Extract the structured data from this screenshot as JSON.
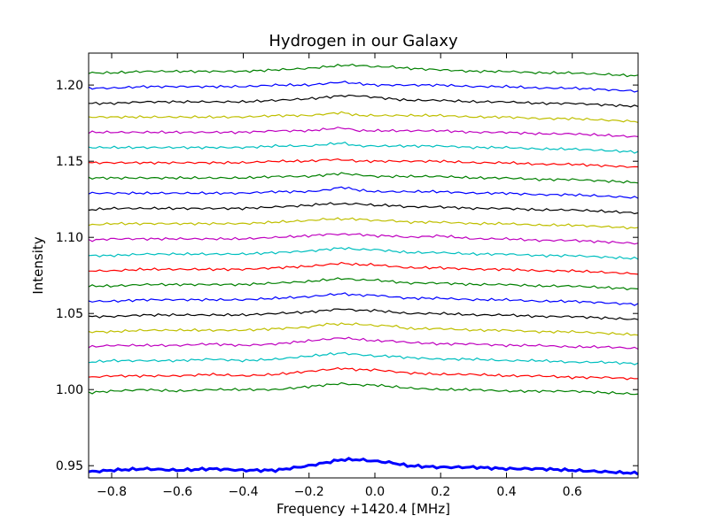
{
  "chart_data": {
    "type": "line",
    "title": "Hydrogen in our Galaxy",
    "xlabel": "Frequency +1420.4 [MHz]",
    "ylabel": "Intensity",
    "xlim": [
      -0.87,
      0.8
    ],
    "ylim": [
      0.942,
      1.221
    ],
    "x_ticks": [
      {
        "value": -0.8,
        "label": "−0.8"
      },
      {
        "value": -0.6,
        "label": "−0.6"
      },
      {
        "value": -0.4,
        "label": "−0.4"
      },
      {
        "value": -0.2,
        "label": "−0.2"
      },
      {
        "value": 0.0,
        "label": "0.0"
      },
      {
        "value": 0.2,
        "label": "0.2"
      },
      {
        "value": 0.4,
        "label": "0.4"
      },
      {
        "value": 0.6,
        "label": "0.6"
      }
    ],
    "y_ticks": [
      {
        "value": 0.95,
        "label": "0.95"
      },
      {
        "value": 1.0,
        "label": "1.00"
      },
      {
        "value": 1.05,
        "label": "1.05"
      },
      {
        "value": 1.1,
        "label": "1.10"
      },
      {
        "value": 1.15,
        "label": "1.15"
      },
      {
        "value": 1.2,
        "label": "1.20"
      }
    ],
    "grid": false,
    "legend": "none",
    "x_sample_points": [
      -0.87,
      -0.8,
      -0.7,
      -0.6,
      -0.5,
      -0.4,
      -0.3,
      -0.2,
      -0.15,
      -0.1,
      -0.05,
      0.0,
      0.05,
      0.1,
      0.2,
      0.3,
      0.4,
      0.5,
      0.6,
      0.7,
      0.8
    ],
    "series": [
      {
        "color": "#0000ff",
        "stroke": 3,
        "y": [
          0.946,
          0.947,
          0.948,
          0.947,
          0.948,
          0.947,
          0.947,
          0.95,
          0.952,
          0.954,
          0.954,
          0.953,
          0.952,
          0.95,
          0.949,
          0.949,
          0.948,
          0.948,
          0.947,
          0.946,
          0.945
        ]
      },
      {
        "color": "#008000",
        "stroke": 1.2,
        "y": [
          0.998,
          0.999,
          1.0,
          0.999,
          1.0,
          1.0,
          1.0,
          1.002,
          1.003,
          1.004,
          1.003,
          1.003,
          1.002,
          1.001,
          1.0,
          1.0,
          0.999,
          0.999,
          0.999,
          0.998,
          0.997
        ]
      },
      {
        "color": "#ff0000",
        "stroke": 1.2,
        "y": [
          1.008,
          1.009,
          1.009,
          1.009,
          1.01,
          1.009,
          1.01,
          1.012,
          1.013,
          1.014,
          1.013,
          1.013,
          1.012,
          1.011,
          1.01,
          1.01,
          1.009,
          1.009,
          1.008,
          1.008,
          1.007
        ]
      },
      {
        "color": "#00bfbf",
        "stroke": 1.2,
        "y": [
          1.018,
          1.019,
          1.019,
          1.019,
          1.02,
          1.019,
          1.02,
          1.022,
          1.023,
          1.024,
          1.023,
          1.022,
          1.022,
          1.021,
          1.02,
          1.02,
          1.019,
          1.019,
          1.018,
          1.018,
          1.017
        ]
      },
      {
        "color": "#bf00bf",
        "stroke": 1.2,
        "y": [
          1.028,
          1.029,
          1.029,
          1.029,
          1.03,
          1.029,
          1.03,
          1.032,
          1.033,
          1.034,
          1.033,
          1.032,
          1.032,
          1.031,
          1.03,
          1.03,
          1.029,
          1.029,
          1.028,
          1.028,
          1.027
        ]
      },
      {
        "color": "#bfbf00",
        "stroke": 1.2,
        "y": [
          1.038,
          1.038,
          1.039,
          1.039,
          1.039,
          1.039,
          1.04,
          1.041,
          1.043,
          1.043,
          1.043,
          1.042,
          1.042,
          1.04,
          1.04,
          1.039,
          1.039,
          1.038,
          1.038,
          1.037,
          1.036
        ]
      },
      {
        "color": "#000000",
        "stroke": 1.2,
        "y": [
          1.048,
          1.048,
          1.049,
          1.049,
          1.049,
          1.049,
          1.05,
          1.051,
          1.052,
          1.053,
          1.052,
          1.052,
          1.051,
          1.05,
          1.05,
          1.049,
          1.049,
          1.048,
          1.048,
          1.047,
          1.046
        ]
      },
      {
        "color": "#0000ff",
        "stroke": 1.2,
        "y": [
          1.058,
          1.058,
          1.059,
          1.059,
          1.059,
          1.059,
          1.06,
          1.061,
          1.062,
          1.063,
          1.062,
          1.062,
          1.061,
          1.06,
          1.06,
          1.059,
          1.059,
          1.058,
          1.058,
          1.057,
          1.056
        ]
      },
      {
        "color": "#008000",
        "stroke": 1.2,
        "y": [
          1.068,
          1.068,
          1.069,
          1.069,
          1.069,
          1.069,
          1.07,
          1.071,
          1.072,
          1.073,
          1.072,
          1.072,
          1.071,
          1.07,
          1.07,
          1.069,
          1.069,
          1.068,
          1.068,
          1.067,
          1.066
        ]
      },
      {
        "color": "#ff0000",
        "stroke": 1.2,
        "y": [
          1.078,
          1.078,
          1.079,
          1.079,
          1.079,
          1.079,
          1.08,
          1.081,
          1.082,
          1.083,
          1.082,
          1.082,
          1.081,
          1.08,
          1.08,
          1.079,
          1.079,
          1.078,
          1.078,
          1.077,
          1.076
        ]
      },
      {
        "color": "#00bfbf",
        "stroke": 1.2,
        "y": [
          1.088,
          1.088,
          1.089,
          1.089,
          1.089,
          1.089,
          1.09,
          1.091,
          1.092,
          1.093,
          1.092,
          1.092,
          1.091,
          1.09,
          1.09,
          1.089,
          1.089,
          1.088,
          1.088,
          1.087,
          1.086
        ]
      },
      {
        "color": "#bf00bf",
        "stroke": 1.2,
        "y": [
          1.098,
          1.099,
          1.099,
          1.099,
          1.099,
          1.099,
          1.1,
          1.101,
          1.102,
          1.102,
          1.102,
          1.101,
          1.101,
          1.1,
          1.101,
          1.099,
          1.099,
          1.098,
          1.098,
          1.097,
          1.096
        ]
      },
      {
        "color": "#bfbf00",
        "stroke": 1.2,
        "y": [
          1.108,
          1.109,
          1.109,
          1.109,
          1.109,
          1.109,
          1.11,
          1.111,
          1.112,
          1.112,
          1.112,
          1.111,
          1.111,
          1.11,
          1.11,
          1.109,
          1.109,
          1.108,
          1.108,
          1.107,
          1.106
        ]
      },
      {
        "color": "#000000",
        "stroke": 1.2,
        "y": [
          1.118,
          1.119,
          1.119,
          1.119,
          1.119,
          1.119,
          1.12,
          1.121,
          1.122,
          1.122,
          1.122,
          1.121,
          1.121,
          1.12,
          1.12,
          1.119,
          1.119,
          1.118,
          1.118,
          1.117,
          1.116
        ]
      },
      {
        "color": "#0000ff",
        "stroke": 1.2,
        "y": [
          1.129,
          1.129,
          1.129,
          1.129,
          1.129,
          1.129,
          1.13,
          1.13,
          1.131,
          1.133,
          1.131,
          1.13,
          1.13,
          1.13,
          1.13,
          1.129,
          1.129,
          1.128,
          1.128,
          1.127,
          1.126
        ]
      },
      {
        "color": "#008000",
        "stroke": 1.2,
        "y": [
          1.139,
          1.139,
          1.139,
          1.139,
          1.139,
          1.139,
          1.14,
          1.14,
          1.141,
          1.142,
          1.141,
          1.14,
          1.14,
          1.14,
          1.14,
          1.139,
          1.139,
          1.138,
          1.138,
          1.137,
          1.136
        ]
      },
      {
        "color": "#ff0000",
        "stroke": 1.2,
        "y": [
          1.149,
          1.149,
          1.149,
          1.149,
          1.149,
          1.149,
          1.15,
          1.15,
          1.151,
          1.151,
          1.15,
          1.15,
          1.15,
          1.15,
          1.15,
          1.149,
          1.149,
          1.148,
          1.148,
          1.147,
          1.146
        ]
      },
      {
        "color": "#00bfbf",
        "stroke": 1.2,
        "y": [
          1.159,
          1.159,
          1.159,
          1.159,
          1.159,
          1.159,
          1.16,
          1.16,
          1.161,
          1.162,
          1.16,
          1.16,
          1.16,
          1.16,
          1.16,
          1.159,
          1.159,
          1.158,
          1.158,
          1.157,
          1.156
        ]
      },
      {
        "color": "#bf00bf",
        "stroke": 1.2,
        "y": [
          1.169,
          1.169,
          1.169,
          1.169,
          1.169,
          1.169,
          1.17,
          1.17,
          1.171,
          1.172,
          1.17,
          1.17,
          1.17,
          1.17,
          1.17,
          1.169,
          1.169,
          1.168,
          1.168,
          1.167,
          1.166
        ]
      },
      {
        "color": "#bfbf00",
        "stroke": 1.2,
        "y": [
          1.179,
          1.179,
          1.179,
          1.179,
          1.179,
          1.179,
          1.18,
          1.18,
          1.181,
          1.182,
          1.18,
          1.18,
          1.18,
          1.18,
          1.18,
          1.179,
          1.179,
          1.178,
          1.178,
          1.177,
          1.176
        ]
      },
      {
        "color": "#000000",
        "stroke": 1.2,
        "y": [
          1.188,
          1.188,
          1.189,
          1.189,
          1.189,
          1.189,
          1.19,
          1.191,
          1.192,
          1.193,
          1.193,
          1.192,
          1.191,
          1.19,
          1.19,
          1.189,
          1.189,
          1.188,
          1.188,
          1.187,
          1.186
        ]
      },
      {
        "color": "#0000ff",
        "stroke": 1.2,
        "y": [
          1.198,
          1.198,
          1.199,
          1.199,
          1.199,
          1.199,
          1.2,
          1.2,
          1.201,
          1.202,
          1.201,
          1.2,
          1.2,
          1.2,
          1.2,
          1.199,
          1.199,
          1.198,
          1.198,
          1.197,
          1.196
        ]
      },
      {
        "color": "#008000",
        "stroke": 1.2,
        "y": [
          1.208,
          1.208,
          1.209,
          1.209,
          1.209,
          1.209,
          1.21,
          1.211,
          1.212,
          1.213,
          1.213,
          1.212,
          1.212,
          1.211,
          1.21,
          1.209,
          1.209,
          1.208,
          1.208,
          1.207,
          1.206
        ]
      }
    ]
  }
}
